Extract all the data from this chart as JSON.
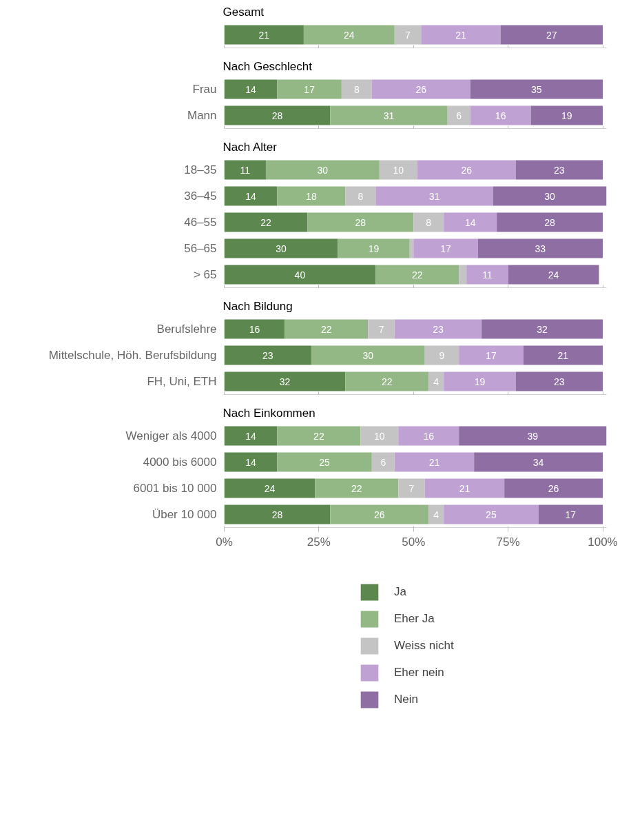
{
  "chart_data": [
    {
      "type": "bar",
      "orientation": "horizontal",
      "stacked": true,
      "title": "Gesamt",
      "categories": [
        null
      ],
      "xlim": [
        0,
        101
      ],
      "xticks": [
        {
          "value": 0,
          "label": null
        },
        {
          "value": 25,
          "label": null
        },
        {
          "value": 50,
          "label": null
        },
        {
          "value": 75,
          "label": null
        },
        {
          "value": 100,
          "label": null
        }
      ],
      "tick_labels": "y",
      "grid": false,
      "data_labels": true,
      "series": [
        {
          "color": "#5c874f",
          "values": [
            21
          ]
        },
        {
          "color": "#93b886",
          "values": [
            24
          ]
        },
        {
          "color": "#c4c4c4",
          "values": [
            7
          ]
        },
        {
          "color": "#bfa2d3",
          "values": [
            21
          ]
        },
        {
          "color": "#8f6fa3",
          "values": [
            27
          ]
        }
      ]
    },
    {
      "type": "bar",
      "orientation": "horizontal",
      "stacked": true,
      "title": "Nach Geschlecht",
      "categories": [
        "Frau",
        "Mann"
      ],
      "xlim": [
        0,
        101
      ],
      "xticks": [
        {
          "value": 0,
          "label": null
        },
        {
          "value": 25,
          "label": null
        },
        {
          "value": 50,
          "label": null
        },
        {
          "value": 75,
          "label": null
        },
        {
          "value": 100,
          "label": null
        }
      ],
      "tick_labels": "y",
      "grid": false,
      "data_labels": true,
      "series": [
        {
          "color": "#5c874f",
          "values": [
            14,
            28
          ]
        },
        {
          "color": "#93b886",
          "values": [
            17,
            31
          ]
        },
        {
          "color": "#c4c4c4",
          "values": [
            8,
            6
          ]
        },
        {
          "color": "#bfa2d3",
          "values": [
            26,
            16
          ]
        },
        {
          "color": "#8f6fa3",
          "values": [
            35,
            19
          ]
        }
      ]
    },
    {
      "type": "bar",
      "orientation": "horizontal",
      "stacked": true,
      "title": "Nach Alter",
      "categories": [
        "18–35",
        "36–45",
        "46–55",
        "56–65",
        "> 65"
      ],
      "xlim": [
        0,
        101
      ],
      "xticks": [
        {
          "value": 0,
          "label": null
        },
        {
          "value": 25,
          "label": null
        },
        {
          "value": 50,
          "label": null
        },
        {
          "value": 75,
          "label": null
        },
        {
          "value": 100,
          "label": null
        }
      ],
      "tick_labels": "y",
      "grid": false,
      "series": [
        {
          "color": "#5c874f",
          "values": [
            11,
            14,
            22,
            30,
            40
          ],
          "value_labels": [
            "11",
            "14",
            "22",
            "30",
            "40"
          ]
        },
        {
          "color": "#93b886",
          "values": [
            30,
            18,
            28,
            19,
            22
          ],
          "value_labels": [
            "30",
            "18",
            "28",
            "19",
            "22"
          ]
        },
        {
          "color": "#c4c4c4",
          "values": [
            10,
            8,
            8,
            1,
            2
          ],
          "value_labels": [
            "10",
            "8",
            "8",
            null,
            null
          ]
        },
        {
          "color": "#bfa2d3",
          "values": [
            26,
            31,
            14,
            17,
            11
          ],
          "value_labels": [
            "26",
            "31",
            "14",
            "17",
            "11"
          ]
        },
        {
          "color": "#8f6fa3",
          "values": [
            23,
            30,
            28,
            33,
            24
          ],
          "value_labels": [
            "23",
            "30",
            "28",
            "33",
            "24"
          ]
        }
      ]
    },
    {
      "type": "bar",
      "orientation": "horizontal",
      "stacked": true,
      "title": "Nach Bildung",
      "categories": [
        "Berufslehre",
        "Mittelschule, Höh. Berufsbildung",
        "FH, Uni, ETH"
      ],
      "xlim": [
        0,
        101
      ],
      "xticks": [
        {
          "value": 0,
          "label": null
        },
        {
          "value": 25,
          "label": null
        },
        {
          "value": 50,
          "label": null
        },
        {
          "value": 75,
          "label": null
        },
        {
          "value": 100,
          "label": null
        }
      ],
      "tick_labels": "y",
      "grid": false,
      "data_labels": true,
      "series": [
        {
          "color": "#5c874f",
          "values": [
            16,
            23,
            32
          ]
        },
        {
          "color": "#93b886",
          "values": [
            22,
            30,
            22
          ]
        },
        {
          "color": "#c4c4c4",
          "values": [
            7,
            9,
            4
          ]
        },
        {
          "color": "#bfa2d3",
          "values": [
            23,
            17,
            19
          ]
        },
        {
          "color": "#8f6fa3",
          "values": [
            32,
            21,
            23
          ]
        }
      ]
    },
    {
      "type": "bar",
      "orientation": "horizontal",
      "stacked": true,
      "title": "Nach Einkommen",
      "categories": [
        "Weniger als 4000",
        "4000 bis 6000",
        "6001 bis 10 000",
        "Über 10 000"
      ],
      "xlim": [
        0,
        101
      ],
      "xticks": [
        {
          "value": 0,
          "label": "0%"
        },
        {
          "value": 25,
          "label": "25%"
        },
        {
          "value": 50,
          "label": "50%"
        },
        {
          "value": 75,
          "label": "75%"
        },
        {
          "value": 100,
          "label": "100%"
        }
      ],
      "grid": false,
      "data_labels": true,
      "legend": "bottom",
      "series": [
        {
          "name": "Ja",
          "color": "#5c874f",
          "values": [
            14,
            14,
            24,
            28
          ]
        },
        {
          "name": "Eher Ja",
          "color": "#93b886",
          "values": [
            22,
            25,
            22,
            26
          ]
        },
        {
          "name": "Weiss nicht",
          "color": "#c4c4c4",
          "values": [
            10,
            6,
            7,
            4
          ]
        },
        {
          "name": "Eher nein",
          "color": "#bfa2d3",
          "values": [
            16,
            21,
            21,
            25
          ]
        },
        {
          "name": "Nein",
          "color": "#8f6fa3",
          "values": [
            39,
            34,
            26,
            17
          ]
        }
      ]
    }
  ]
}
